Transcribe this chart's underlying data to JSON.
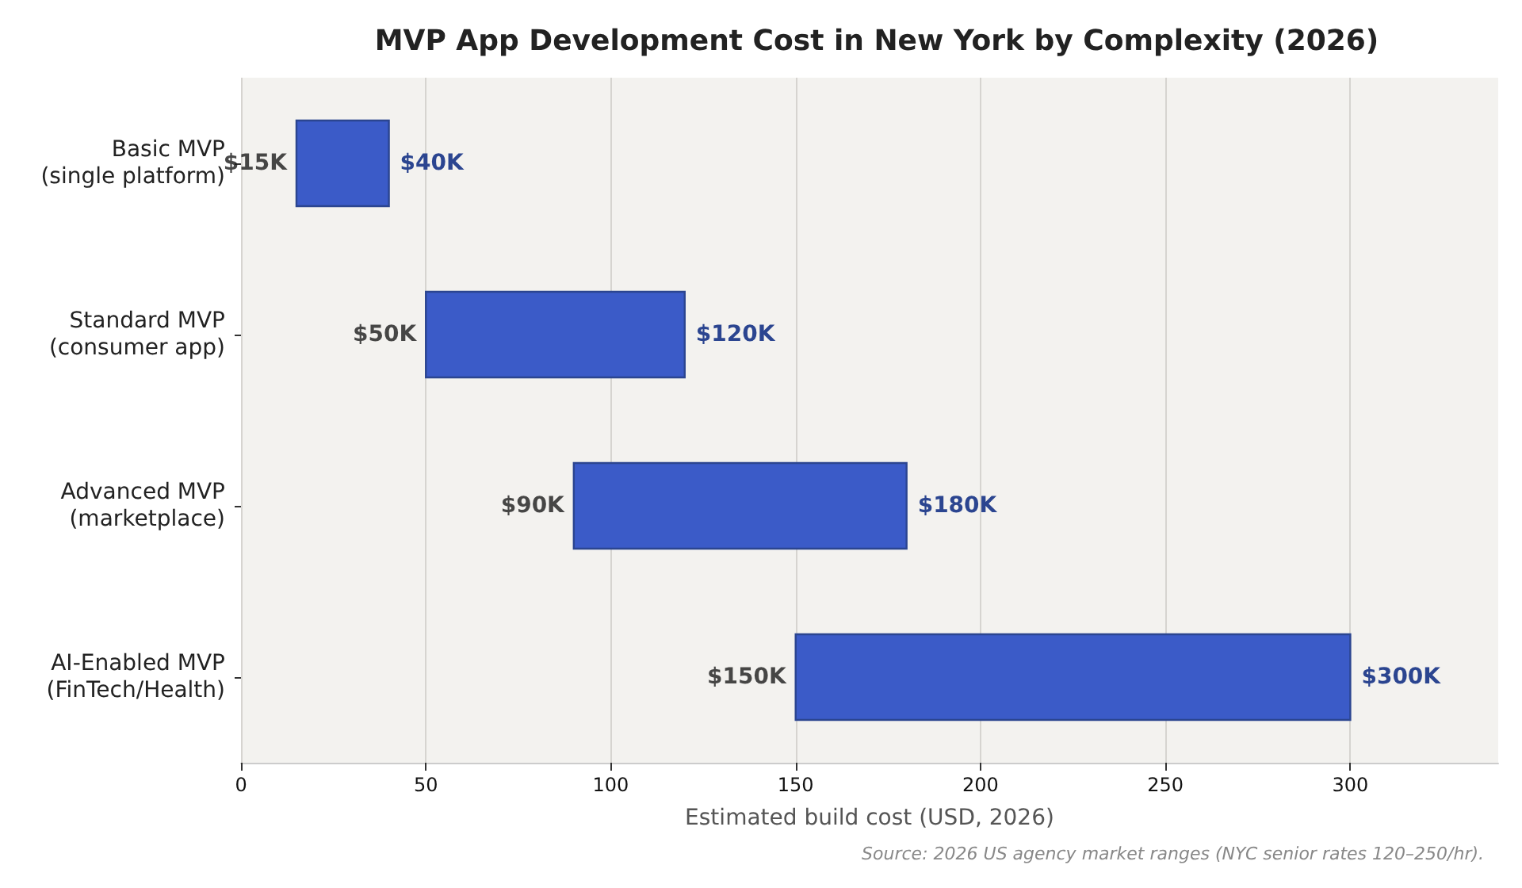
{
  "chart_data": {
    "type": "bar",
    "orientation": "horizontal",
    "title": "MVP App Development Cost in New York by Complexity (2026)",
    "xlabel": "Estimated build cost (USD, 2026)",
    "categories": [
      "Basic MVP\n(single platform)",
      "Standard MVP\n(consumer app)",
      "Advanced MVP\n(marketplace)",
      "AI-Enabled MVP\n(FinTech/Health)"
    ],
    "base": [
      15,
      50,
      90,
      150
    ],
    "values": [
      25,
      70,
      90,
      150
    ],
    "value_labels": [
      "$40K",
      "$120K",
      "$180K",
      "$300K"
    ],
    "color": "#3b5bc8",
    "xlim": [
      0,
      340
    ],
    "xticks": [
      0,
      50,
      100,
      150,
      200,
      250,
      300
    ],
    "grid": "x",
    "annotations": [
      {
        "text": "$15K",
        "x": 15,
        "y": "Basic MVP\n(single platform)"
      },
      {
        "text": "$50K",
        "x": 50,
        "y": "Standard MVP\n(consumer app)"
      },
      {
        "text": "$90K",
        "x": 90,
        "y": "Advanced MVP\n(marketplace)"
      },
      {
        "text": "$150K",
        "x": 150,
        "y": "AI-Enabled MVP\n(FinTech/Health)"
      },
      "Source: 2026 US agency market ranges (NYC senior rates 120–250/hr)."
    ]
  }
}
